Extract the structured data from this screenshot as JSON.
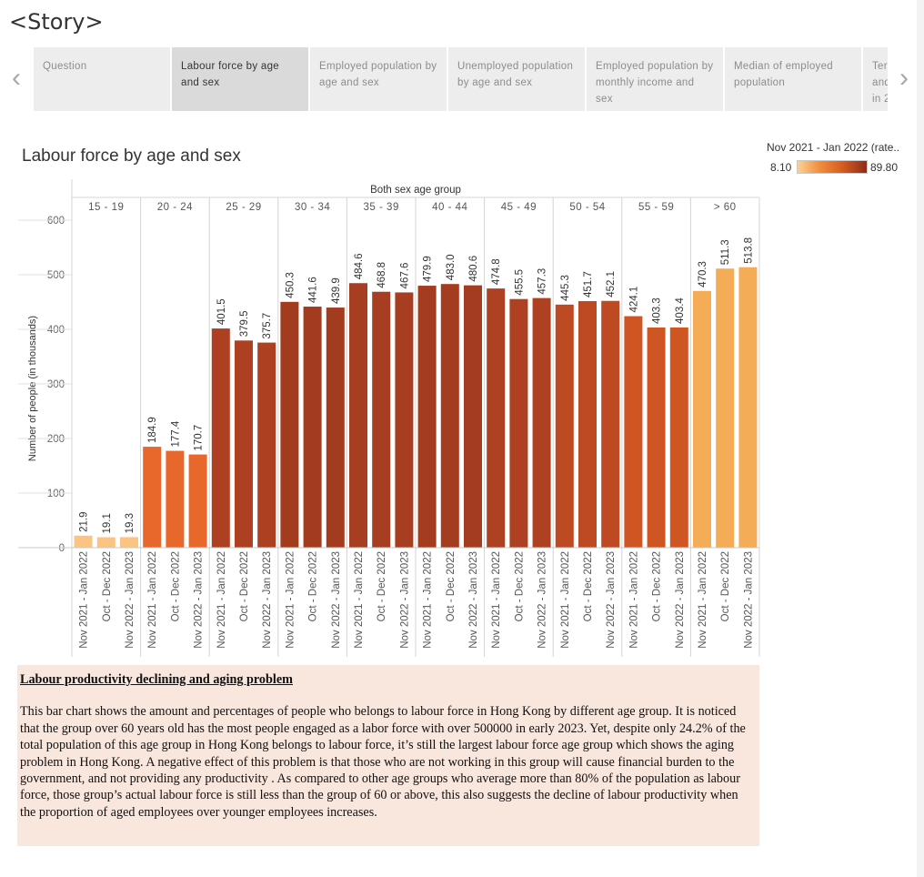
{
  "story": {
    "title": "<Story>"
  },
  "nav": {
    "prev_icon": "chevron-left-icon",
    "next_icon": "chevron-right-icon",
    "prev_glyph": "‹",
    "next_glyph": "›"
  },
  "tabs": [
    {
      "label": "Question",
      "active": false
    },
    {
      "label": "Labour force by age and sex",
      "active": true
    },
    {
      "label": "Employed population by age and sex",
      "active": false
    },
    {
      "label": "Unemployed population by age and sex",
      "active": false
    },
    {
      "label": "Employed population by monthly income and sex",
      "active": false
    },
    {
      "label": "Median of employed population",
      "active": false
    },
    {
      "label": "Ter and in 2",
      "active": false
    }
  ],
  "sheet": {
    "title": "Labour force by age and sex"
  },
  "legend": {
    "title": "Nov 2021 - Jan 2022 (rate..",
    "min": "8.10",
    "max": "89.80"
  },
  "chart_data": {
    "type": "bar",
    "title": "",
    "group_header": "Both sex age group",
    "ylabel": "Number of people (in thousands)",
    "ylim": [
      0,
      600
    ],
    "yticks": [
      0,
      100,
      200,
      300,
      400,
      500,
      600
    ],
    "groups": [
      "15 - 19",
      "20 - 24",
      "25 - 29",
      "30 - 34",
      "35 - 39",
      "40 - 44",
      "45 - 49",
      "50 - 54",
      "55 - 59",
      "> 60"
    ],
    "periods": [
      "Nov 2021 - Jan 2022",
      "Oct - Dec 2022",
      "Nov 2022 - Jan 2023"
    ],
    "values": [
      [
        21.9,
        19.1,
        19.3
      ],
      [
        184.9,
        177.4,
        170.7
      ],
      [
        401.5,
        379.5,
        375.7
      ],
      [
        450.3,
        441.6,
        439.9
      ],
      [
        484.6,
        468.8,
        467.6
      ],
      [
        479.9,
        483.0,
        480.6
      ],
      [
        474.8,
        455.5,
        457.3
      ],
      [
        445.3,
        451.7,
        452.1
      ],
      [
        424.1,
        403.3,
        403.4
      ],
      [
        470.3,
        511.3,
        513.8
      ]
    ],
    "labels": [
      [
        "21.9",
        "19.1",
        "19.3"
      ],
      [
        "184.9",
        "177.4",
        "170.7"
      ],
      [
        "401.5",
        "379.5",
        "375.7"
      ],
      [
        "450.3",
        "441.6",
        "439.9"
      ],
      [
        "484.6",
        "468.8",
        "467.6"
      ],
      [
        "479.9",
        "483.0",
        "480.6"
      ],
      [
        "474.8",
        "455.5",
        "457.3"
      ],
      [
        "445.3",
        "451.7",
        "452.1"
      ],
      [
        "424.1",
        "403.3",
        "403.4"
      ],
      [
        "470.3",
        "511.3",
        "513.8"
      ]
    ],
    "bar_colors": [
      "#fbc483",
      "#e8672a",
      "#ac4021",
      "#a33b1f",
      "#a83e21",
      "#a43c1f",
      "#ad4122",
      "#bd4a22",
      "#cf5523",
      "#f4ad56"
    ],
    "grid": false,
    "legend_position": "top-right"
  },
  "note": {
    "heading": "Labour productivity declining and aging problem",
    "body": "This bar chart shows the amount and percentages of people who belongs to labour force in Hong Kong by different age group. It is noticed that the group over 60 years old has the most people engaged as a labor force with over 500000 in early 2023. Yet, despite only 24.2% of the total population of this age group in Hong Kong belongs to labour force, it’s still the largest labour force age group which shows the aging problem in Hong Kong. A negative effect of this problem is that those who are not working in this group will cause financial burden to the government, and not providing any productivity . As compared to other age groups who average more than 80% of the population as labour force, those group’s actual labour force is still less than the group of 60 or above, this also suggests the decline of labour productivity when the proportion of aged employees over younger employees increases."
  }
}
